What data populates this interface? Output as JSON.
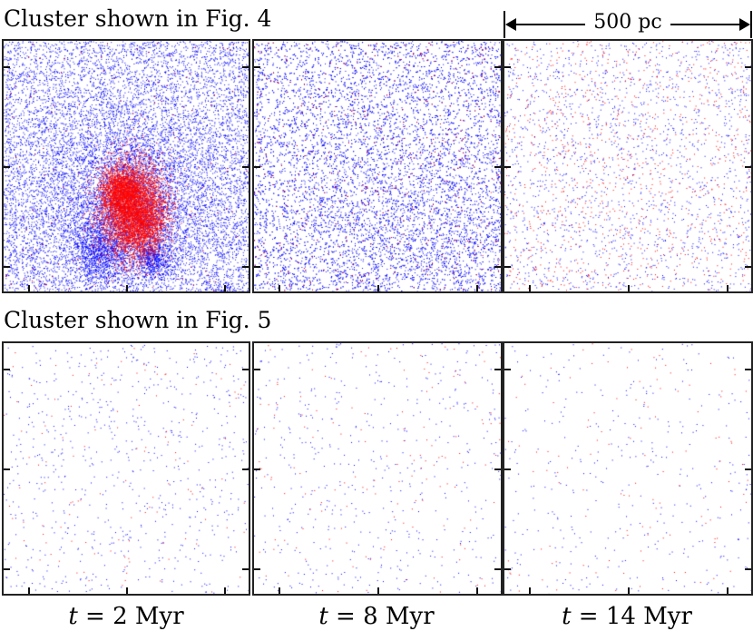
{
  "figure": {
    "rows": [
      {
        "title": "Cluster shown in Fig. 4"
      },
      {
        "title": "Cluster shown in Fig. 5"
      }
    ],
    "scale_bar": {
      "label": "500 pc"
    },
    "time_labels": [
      {
        "var": "t",
        "text": " = 2 Myr"
      },
      {
        "var": "t",
        "text": " = 8 Myr"
      },
      {
        "var": "t",
        "text": " = 14 Myr"
      }
    ],
    "colors": {
      "gas_particles": "#0000ff",
      "star_particles": "#ff0000",
      "frame": "#222222"
    }
  }
}
